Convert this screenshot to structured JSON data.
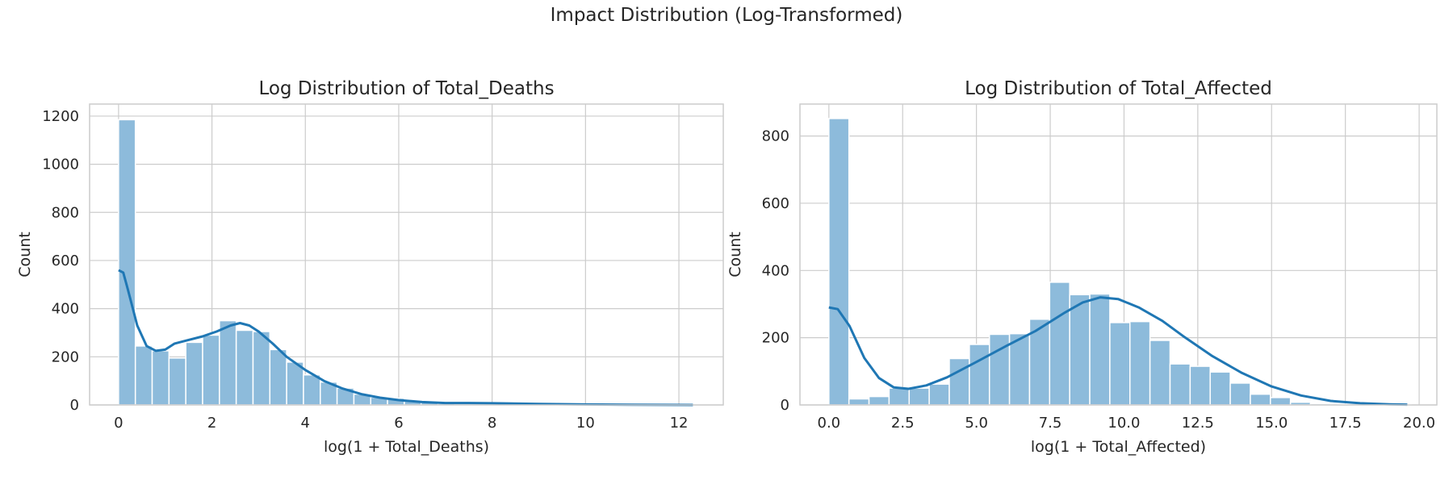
{
  "suptitle": "Impact Distribution (Log-Transformed)",
  "colors": {
    "bar": "#8dbbdb",
    "kde": "#1f77b4",
    "grid": "#cccccc",
    "frame": "#cccccc"
  },
  "chart_data": [
    {
      "type": "histogram",
      "title": "Log Distribution of Total_Deaths",
      "xlabel": "log(1 + Total_Deaths)",
      "ylabel": "Count",
      "xlim": [
        -0.62,
        12.95
      ],
      "ylim": [
        0,
        1250
      ],
      "xticks": [
        0,
        2,
        4,
        6,
        8,
        10,
        12
      ],
      "xtick_labels": [
        "0",
        "2",
        "4",
        "6",
        "8",
        "10",
        "12"
      ],
      "yticks": [
        0,
        200,
        400,
        600,
        800,
        1000,
        1200
      ],
      "ytick_labels": [
        "0",
        "200",
        "400",
        "600",
        "800",
        "1000",
        "1200"
      ],
      "bin_edges": [
        0,
        0.36,
        0.72,
        1.08,
        1.44,
        1.8,
        2.16,
        2.52,
        2.88,
        3.24,
        3.6,
        3.96,
        4.32,
        4.68,
        5.04,
        5.4,
        5.76,
        6.12,
        6.48,
        6.84,
        7.2,
        7.56,
        7.92,
        8.28,
        8.64,
        9.0,
        9.36,
        9.72,
        10.08,
        10.44,
        10.8,
        11.16,
        11.52,
        11.88,
        12.24
      ],
      "counts": [
        1185,
        245,
        225,
        195,
        260,
        290,
        350,
        310,
        305,
        230,
        178,
        125,
        95,
        70,
        45,
        32,
        28,
        18,
        10,
        6,
        4,
        3,
        3,
        2,
        2,
        1,
        1,
        1,
        0,
        0,
        0,
        0,
        0,
        1
      ],
      "kde": [
        [
          0,
          560
        ],
        [
          0.1,
          550
        ],
        [
          0.2,
          480
        ],
        [
          0.4,
          330
        ],
        [
          0.6,
          245
        ],
        [
          0.8,
          225
        ],
        [
          1.0,
          230
        ],
        [
          1.2,
          255
        ],
        [
          1.5,
          270
        ],
        [
          1.8,
          285
        ],
        [
          2.1,
          305
        ],
        [
          2.4,
          330
        ],
        [
          2.6,
          340
        ],
        [
          2.8,
          330
        ],
        [
          3.0,
          305
        ],
        [
          3.3,
          255
        ],
        [
          3.6,
          200
        ],
        [
          4.0,
          145
        ],
        [
          4.4,
          100
        ],
        [
          4.8,
          68
        ],
        [
          5.2,
          45
        ],
        [
          5.6,
          30
        ],
        [
          6.0,
          20
        ],
        [
          6.5,
          12
        ],
        [
          7.0,
          8
        ],
        [
          7.5,
          8
        ],
        [
          8.0,
          7
        ],
        [
          9.0,
          4
        ],
        [
          10.0,
          2
        ],
        [
          11.0,
          1
        ],
        [
          12.3,
          0
        ]
      ]
    },
    {
      "type": "histogram",
      "title": "Log Distribution of Total_Affected",
      "xlabel": "log(1 + Total_Affected)",
      "ylabel": "Count",
      "xlim": [
        -0.98,
        20.6
      ],
      "ylim": [
        0,
        895
      ],
      "xticks": [
        0,
        2.5,
        5,
        7.5,
        10,
        12.5,
        15,
        17.5,
        20
      ],
      "xtick_labels": [
        "0.0",
        "2.5",
        "5.0",
        "7.5",
        "10.0",
        "12.5",
        "15.0",
        "17.5",
        "20.0"
      ],
      "yticks": [
        0,
        200,
        400,
        600,
        800
      ],
      "ytick_labels": [
        "0",
        "200",
        "400",
        "600",
        "800"
      ],
      "bin_edges": [
        0,
        0.68,
        1.36,
        2.04,
        2.72,
        3.4,
        4.08,
        4.76,
        5.44,
        6.12,
        6.8,
        7.48,
        8.16,
        8.84,
        9.52,
        10.2,
        10.88,
        11.56,
        12.24,
        12.92,
        13.6,
        14.28,
        14.96,
        15.64,
        16.32,
        17.0,
        17.68,
        18.36,
        19.04,
        19.72
      ],
      "counts": [
        852,
        18,
        25,
        50,
        50,
        62,
        138,
        180,
        210,
        212,
        255,
        365,
        328,
        330,
        245,
        248,
        192,
        122,
        115,
        98,
        65,
        32,
        22,
        8,
        4,
        2,
        1,
        1,
        1
      ],
      "kde": [
        [
          0,
          290
        ],
        [
          0.3,
          285
        ],
        [
          0.7,
          235
        ],
        [
          1.2,
          140
        ],
        [
          1.7,
          80
        ],
        [
          2.2,
          52
        ],
        [
          2.7,
          48
        ],
        [
          3.3,
          58
        ],
        [
          4.0,
          82
        ],
        [
          5.0,
          128
        ],
        [
          6.0,
          175
        ],
        [
          7.0,
          220
        ],
        [
          8.0,
          275
        ],
        [
          8.6,
          305
        ],
        [
          9.2,
          320
        ],
        [
          9.8,
          315
        ],
        [
          10.5,
          290
        ],
        [
          11.3,
          250
        ],
        [
          12.0,
          205
        ],
        [
          13.0,
          145
        ],
        [
          14.0,
          95
        ],
        [
          15.0,
          55
        ],
        [
          16.0,
          28
        ],
        [
          17.0,
          12
        ],
        [
          18.0,
          5
        ],
        [
          19.0,
          2
        ],
        [
          19.6,
          1
        ]
      ]
    }
  ]
}
